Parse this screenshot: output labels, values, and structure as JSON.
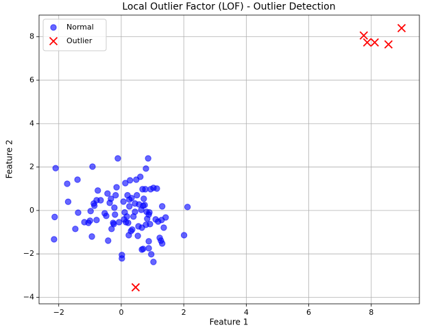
{
  "chart_data": {
    "type": "scatter",
    "title": "Local Outlier Factor (LOF) - Outlier Detection",
    "x_label": "Feature 1",
    "y_label": "Feature 2",
    "xlim": [
      -2.63,
      9.54
    ],
    "ylim": [
      -4.3,
      9.0
    ],
    "xticks": [
      {
        "value": -2,
        "label": "−2"
      },
      0,
      2,
      4,
      6,
      8
    ],
    "yticks": [
      {
        "value": -4,
        "label": "−4"
      },
      {
        "value": -2,
        "label": "−2"
      },
      0,
      2,
      4,
      6,
      8
    ],
    "grid": true,
    "legend": "upper left",
    "series": [
      {
        "name": "Normal",
        "color": "#0000ff",
        "marker": "o",
        "x": [
          -2.1,
          -2.13,
          -2.15,
          -1.73,
          -1.7,
          -1.4,
          -1.38,
          -1.47,
          -1.18,
          -1.05,
          -1.0,
          -0.98,
          -0.94,
          -0.92,
          -0.88,
          -0.86,
          -0.79,
          -0.75,
          -0.66,
          -0.79,
          -0.53,
          -0.48,
          -0.44,
          -0.42,
          -0.37,
          -0.33,
          -0.31,
          -0.26,
          -0.22,
          -0.2,
          -0.18,
          -0.24,
          -0.15,
          -0.11,
          -0.07,
          0.02,
          0.02,
          0.07,
          0.09,
          0.11,
          0.13,
          0.15,
          0.18,
          0.2,
          0.22,
          0.24,
          0.26,
          0.26,
          0.28,
          0.31,
          0.33,
          0.35,
          0.39,
          0.44,
          0.44,
          0.48,
          0.5,
          0.53,
          0.55,
          0.57,
          0.61,
          0.64,
          0.66,
          0.66,
          0.68,
          0.7,
          0.7,
          0.72,
          0.75,
          0.77,
          0.79,
          0.79,
          0.81,
          0.83,
          0.86,
          0.88,
          0.88,
          0.9,
          0.92,
          0.88,
          0.94,
          0.96,
          1.03,
          1.03,
          1.1,
          1.14,
          1.18,
          1.23,
          1.27,
          1.29,
          1.31,
          1.31,
          1.36,
          1.42,
          2.01,
          2.12
        ],
        "values": [
          1.95,
          -0.3,
          -1.33,
          1.23,
          0.4,
          1.42,
          -0.1,
          -0.85,
          -0.54,
          -0.57,
          -0.47,
          -0.03,
          -1.2,
          2.02,
          0.32,
          0.22,
          -0.44,
          0.92,
          0.47,
          0.47,
          -0.13,
          -0.25,
          0.78,
          -1.39,
          0.35,
          0.54,
          -0.85,
          -0.57,
          0.13,
          -0.19,
          0.7,
          -0.63,
          1.07,
          2.4,
          -0.54,
          -2.05,
          -2.21,
          0.41,
          -0.41,
          -0.09,
          1.26,
          -0.54,
          -0.28,
          0.7,
          -0.57,
          -1.14,
          0.19,
          0.5,
          1.39,
          -0.95,
          0.57,
          -0.88,
          -0.28,
          0.32,
          -0.06,
          1.42,
          0.7,
          -1.17,
          -0.73,
          0.28,
          1.55,
          0.03,
          -0.79,
          -1.8,
          0.98,
          -1.77,
          0.22,
          0.54,
          0.25,
          0.98,
          -0.66,
          1.93,
          -0.06,
          -0.38,
          2.4,
          -1.42,
          -0.19,
          -0.09,
          -0.63,
          -1.74,
          0.98,
          -2.02,
          -2.37,
          1.04,
          -0.41,
          1.01,
          -0.51,
          -1.26,
          -1.39,
          -0.44,
          0.19,
          -1.52,
          -0.79,
          -0.32,
          -1.14,
          0.16
        ]
      },
      {
        "name": "Outlier",
        "color": "#ff0000",
        "marker": "x",
        "x": [
          7.76,
          7.87,
          8.11,
          8.55,
          8.97,
          0.46
        ],
        "values": [
          8.06,
          7.74,
          7.74,
          7.65,
          8.4,
          -3.54
        ]
      }
    ]
  }
}
